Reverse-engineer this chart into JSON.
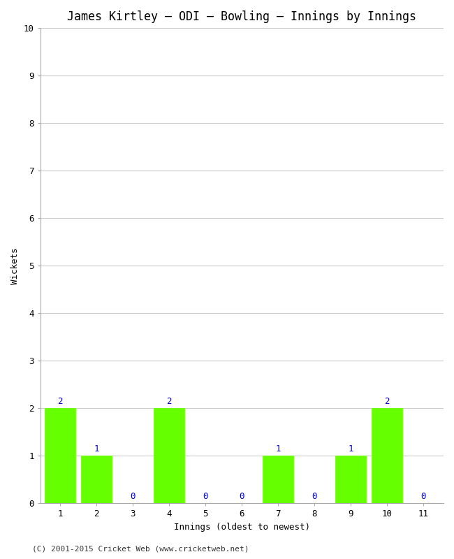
{
  "title": "James Kirtley – ODI – Bowling – Innings by Innings",
  "xlabel": "Innings (oldest to newest)",
  "ylabel": "Wickets",
  "categories": [
    "1",
    "2",
    "3",
    "4",
    "5",
    "6",
    "7",
    "8",
    "9",
    "10",
    "11"
  ],
  "values": [
    2,
    1,
    0,
    2,
    0,
    0,
    1,
    0,
    1,
    2,
    0
  ],
  "bar_color": "#66ff00",
  "bar_edge_color": "#66ff00",
  "label_color": "#0000cc",
  "ylim": [
    0,
    10
  ],
  "yticks": [
    0,
    1,
    2,
    3,
    4,
    5,
    6,
    7,
    8,
    9,
    10
  ],
  "background_color": "#ffffff",
  "plot_bg_color": "#ffffff",
  "grid_color": "#cccccc",
  "title_fontsize": 12,
  "axis_label_fontsize": 9,
  "tick_fontsize": 9,
  "label_fontsize": 9,
  "footer": "(C) 2001-2015 Cricket Web (www.cricketweb.net)"
}
